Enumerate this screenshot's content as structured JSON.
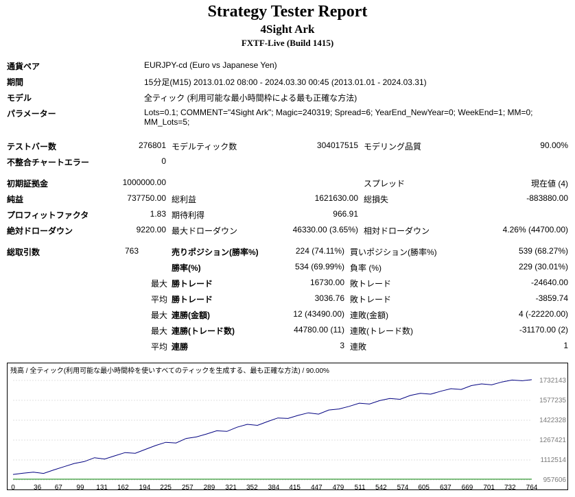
{
  "header": {
    "title": "Strategy Tester Report",
    "subtitle": "4Sight Ark",
    "server": "FXTF-Live (Build 1415)"
  },
  "params": {
    "symbol_label": "通貨ペア",
    "symbol_value": "EURJPY-cd (Euro vs Japanese Yen)",
    "period_label": "期間",
    "period_value": "15分足(M15) 2013.01.02 08:00 - 2024.03.30 00:45 (2013.01.01 - 2024.03.31)",
    "model_label": "モデル",
    "model_value": "全ティック (利用可能な最小時間枠による最も正確な方法)",
    "parameters_label": "パラメーター",
    "parameters_value": "Lots=0.1; COMMENT=\"4Sight Ark\"; Magic=240319; Spread=6; YearEnd_NewYear=0; WeekEnd=1; MM=0; MM_Lots=5;"
  },
  "stats": {
    "rows": [
      {
        "l1": "テストバー数",
        "v1": "276801",
        "l2": "モデルティック数",
        "v2": "304017515",
        "l3": "モデリング品質",
        "v3": "90.00%"
      },
      {
        "l1": "不整合チャートエラー",
        "v1": "0",
        "l2": "",
        "v2": "",
        "l3": "",
        "v3": ""
      }
    ],
    "rows2": [
      {
        "l1": "初期証拠金",
        "v1": "1000000.00",
        "l2": "",
        "v2": "",
        "l3": "スプレッド",
        "v3": "現在値 (4)"
      },
      {
        "l1": "純益",
        "v1": "737750.00",
        "l2": "総利益",
        "v2": "1621630.00",
        "l3": "総損失",
        "v3": "-883880.00"
      },
      {
        "l1": "プロフィットファクタ",
        "v1": "1.83",
        "l2": "期待利得",
        "v2": "966.91",
        "l3": "",
        "v3": ""
      },
      {
        "l1": "絶対ドローダウン",
        "v1": "9220.00",
        "l2": "最大ドローダウン",
        "v2": "46330.00 (3.65%)",
        "l3": "相対ドローダウン",
        "v3": "4.26% (44700.00)"
      }
    ],
    "rows3": [
      {
        "l1": "総取引数",
        "v1": "763",
        "subl": "",
        "l2": "売りポジション(勝率%)",
        "v2": "224 (74.11%)",
        "l3": "買いポジション(勝率%)",
        "v3": "539 (68.27%)"
      },
      {
        "l1": "",
        "v1": "",
        "subl": "",
        "l2": "勝率(%)",
        "v2": "534 (69.99%)",
        "l3": "負率 (%)",
        "v3": "229 (30.01%)"
      },
      {
        "l1": "",
        "v1": "",
        "subl": "最大",
        "l2": "勝トレード",
        "v2": "16730.00",
        "l3": "敗トレード",
        "v3": "-24640.00"
      },
      {
        "l1": "",
        "v1": "",
        "subl": "平均",
        "l2": "勝トレード",
        "v2": "3036.76",
        "l3": "敗トレード",
        "v3": "-3859.74"
      },
      {
        "l1": "",
        "v1": "",
        "subl": "最大",
        "l2": "連勝(金額)",
        "v2": "12 (43490.00)",
        "l3": "連敗(金額)",
        "v3": "4 (-22220.00)"
      },
      {
        "l1": "",
        "v1": "",
        "subl": "最大",
        "l2": "連勝(トレード数)",
        "v2": "44780.00 (11)",
        "l3": "連敗(トレード数)",
        "v3": "-31170.00 (2)"
      },
      {
        "l1": "",
        "v1": "",
        "subl": "平均",
        "l2": "連勝",
        "v2": "3",
        "l3": "連敗",
        "v3": "1"
      }
    ]
  },
  "chart": {
    "type": "line",
    "title": "残高 / 全ティック(利用可能な最小時間枠を使いすべてのティックを生成する、最も正確な方法) / 90.00%",
    "background_color": "#ffffff",
    "border_color": "#000000",
    "grid_color": "#c0c0c0",
    "line_color": "#000080",
    "size_color": "#008000",
    "line_width": 1,
    "x_ticks": [
      "0",
      "36",
      "67",
      "99",
      "131",
      "162",
      "194",
      "225",
      "257",
      "289",
      "321",
      "352",
      "384",
      "415",
      "447",
      "479",
      "511",
      "542",
      "574",
      "605",
      "637",
      "669",
      "701",
      "732",
      "764"
    ],
    "y_ticks": [
      "957606",
      "1112514",
      "1267421",
      "1422328",
      "1577235",
      "1732143"
    ],
    "y_min": 957606,
    "y_max": 1780000,
    "x_min": 0,
    "x_max": 764,
    "balance_series": [
      [
        0,
        1000000
      ],
      [
        15,
        1010000
      ],
      [
        30,
        1018000
      ],
      [
        45,
        1008000
      ],
      [
        60,
        1035000
      ],
      [
        75,
        1060000
      ],
      [
        90,
        1085000
      ],
      [
        105,
        1100000
      ],
      [
        120,
        1130000
      ],
      [
        135,
        1120000
      ],
      [
        150,
        1145000
      ],
      [
        165,
        1170000
      ],
      [
        180,
        1165000
      ],
      [
        195,
        1195000
      ],
      [
        210,
        1225000
      ],
      [
        225,
        1250000
      ],
      [
        240,
        1245000
      ],
      [
        255,
        1280000
      ],
      [
        270,
        1292000
      ],
      [
        285,
        1315000
      ],
      [
        300,
        1340000
      ],
      [
        315,
        1335000
      ],
      [
        330,
        1368000
      ],
      [
        345,
        1390000
      ],
      [
        360,
        1382000
      ],
      [
        375,
        1412000
      ],
      [
        390,
        1440000
      ],
      [
        405,
        1436000
      ],
      [
        420,
        1460000
      ],
      [
        435,
        1480000
      ],
      [
        450,
        1470000
      ],
      [
        465,
        1502000
      ],
      [
        480,
        1510000
      ],
      [
        495,
        1530000
      ],
      [
        510,
        1555000
      ],
      [
        525,
        1548000
      ],
      [
        540,
        1575000
      ],
      [
        555,
        1592000
      ],
      [
        570,
        1585000
      ],
      [
        585,
        1615000
      ],
      [
        600,
        1632000
      ],
      [
        615,
        1625000
      ],
      [
        630,
        1648000
      ],
      [
        645,
        1668000
      ],
      [
        660,
        1662000
      ],
      [
        675,
        1692000
      ],
      [
        690,
        1705000
      ],
      [
        705,
        1698000
      ],
      [
        720,
        1720000
      ],
      [
        735,
        1735000
      ],
      [
        750,
        1730000
      ],
      [
        764,
        1737750
      ]
    ]
  }
}
